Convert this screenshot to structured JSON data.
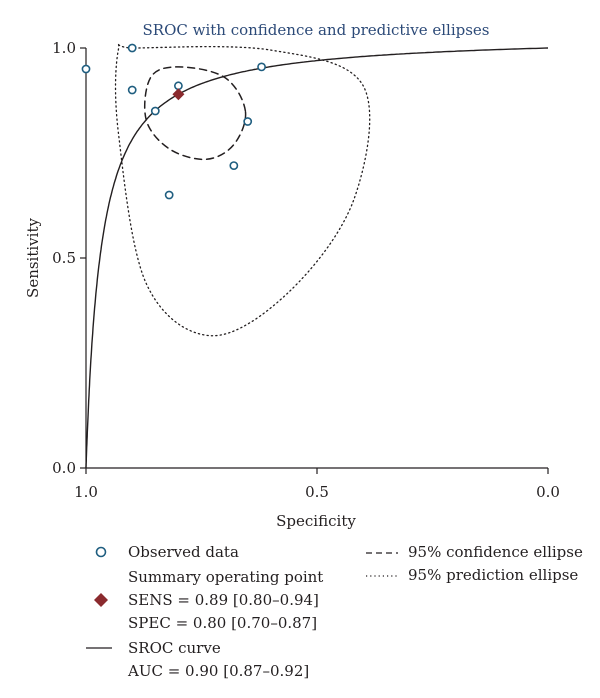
{
  "chart_data": {
    "type": "scatter",
    "title": "SROC with confidence and predictive ellipses",
    "xlabel": "Specificity",
    "ylabel": "Sensitivity",
    "x_axis_reversed": true,
    "xlim": [
      1.0,
      0.0
    ],
    "ylim": [
      0.0,
      1.0
    ],
    "x_ticks": [
      "1.0",
      "0.5",
      "0.0"
    ],
    "y_ticks": [
      "0.0",
      "0.5",
      "1.0"
    ],
    "x_tick_values": [
      1.0,
      0.5,
      0.0
    ],
    "y_tick_values": [
      0.0,
      0.5,
      1.0
    ],
    "grid": false,
    "series": [
      {
        "name": "Observed data",
        "kind": "scatter",
        "marker": "open-circle",
        "points": [
          {
            "spec": 1.0,
            "sens": 0.95
          },
          {
            "spec": 0.9,
            "sens": 1.0
          },
          {
            "spec": 0.9,
            "sens": 0.9
          },
          {
            "spec": 0.85,
            "sens": 0.85
          },
          {
            "spec": 0.8,
            "sens": 0.91
          },
          {
            "spec": 0.82,
            "sens": 0.65
          },
          {
            "spec": 0.68,
            "sens": 0.72
          },
          {
            "spec": 0.65,
            "sens": 0.825
          },
          {
            "spec": 0.62,
            "sens": 0.955
          }
        ]
      },
      {
        "name": "Summary operating point",
        "kind": "point",
        "marker": "filled-diamond",
        "spec": 0.8,
        "sens": 0.89
      },
      {
        "name": "SROC curve",
        "kind": "line",
        "style": "solid"
      },
      {
        "name": "95% confidence ellipse",
        "kind": "line",
        "style": "dashed",
        "points": [
          {
            "spec": 0.655,
            "sens": 0.85
          },
          {
            "spec": 0.7,
            "sens": 0.93
          },
          {
            "spec": 0.8,
            "sens": 0.955
          },
          {
            "spec": 0.86,
            "sens": 0.93
          },
          {
            "spec": 0.87,
            "sens": 0.83
          },
          {
            "spec": 0.82,
            "sens": 0.76
          },
          {
            "spec": 0.74,
            "sens": 0.735
          },
          {
            "spec": 0.68,
            "sens": 0.77
          }
        ]
      },
      {
        "name": "95% prediction ellipse",
        "kind": "line",
        "style": "dotted",
        "points": [
          {
            "spec": 0.895,
            "sens": 1.0
          },
          {
            "spec": 0.6,
            "sens": 0.995
          },
          {
            "spec": 0.4,
            "sens": 0.91
          },
          {
            "spec": 0.42,
            "sens": 0.64
          },
          {
            "spec": 0.56,
            "sens": 0.42
          },
          {
            "spec": 0.73,
            "sens": 0.315
          },
          {
            "spec": 0.87,
            "sens": 0.44
          },
          {
            "spec": 0.93,
            "sens": 0.8
          },
          {
            "spec": 0.93,
            "sens": 0.995
          }
        ]
      }
    ],
    "summary": {
      "sens_text": "SENS = 0.89 [0.80–0.94]",
      "spec_text": "SPEC = 0.80 [0.70–0.87]",
      "auc_text": "AUC = 0.90 [0.87–0.92]"
    },
    "legend_position": "bottom"
  },
  "legend": {
    "observed": "Observed data",
    "summary_point": "Summary operating point",
    "sens": "SENS = 0.89 [0.80–0.94]",
    "spec": "SPEC = 0.80 [0.70–0.87]",
    "sroc": "SROC curve",
    "auc": "AUC = 0.90 [0.87–0.92]",
    "confidence": "95% confidence ellipse",
    "prediction": "95% prediction ellipse"
  },
  "colors": {
    "ink": "#231f20",
    "marker": "#1f5e80",
    "summary": "#8b2a2e",
    "title": "#2c4a78"
  }
}
